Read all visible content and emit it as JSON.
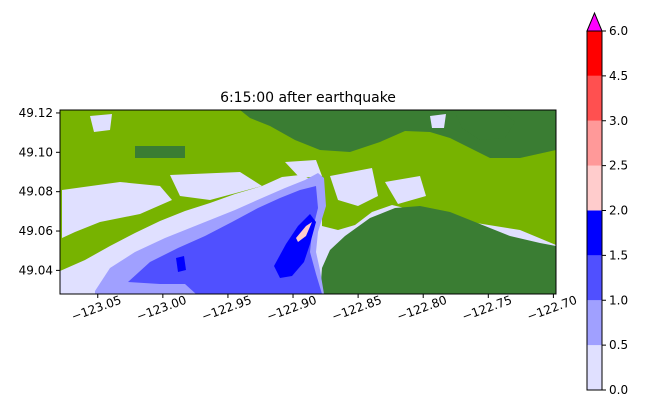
{
  "chart_data": {
    "type": "heatmap",
    "title": "6:15:00 after earthquake",
    "xlabel": "",
    "ylabel": "",
    "x_ticks": [
      -123.05,
      -123.0,
      -122.95,
      -122.9,
      -122.85,
      -122.8,
      -122.75,
      -122.7
    ],
    "x_tick_labels": [
      "−123.05",
      "−123.00",
      "−122.95",
      "−122.90",
      "−122.85",
      "−122.80",
      "−122.75",
      "−122.70"
    ],
    "y_ticks": [
      49.04,
      49.06,
      49.08,
      49.1,
      49.12
    ],
    "y_tick_labels": [
      "49.04",
      "49.06",
      "49.08",
      "49.10",
      "49.12"
    ],
    "xlim": [
      -123.079,
      -122.698
    ],
    "ylim": [
      49.028,
      49.1215
    ],
    "grid": false,
    "colorbar": {
      "levels": [
        0.0,
        0.5,
        1.0,
        1.5,
        2.0,
        2.5,
        3.0,
        4.5,
        6.0
      ],
      "tick_labels": [
        "0.0",
        "0.5",
        "1.0",
        "1.5",
        "2.0",
        "2.5",
        "3.0",
        "4.5",
        "6.0"
      ],
      "colors": [
        "#e0e0ff",
        "#a0a0ff",
        "#5050ff",
        "#0000ff",
        "#ffcccc",
        "#ff9999",
        "#ff5050",
        "#ff0000"
      ],
      "extend_max_color": "#ff00ff",
      "placement": "right"
    },
    "land_colors": {
      "low": "#77b300",
      "high": "#3a7d33"
    }
  }
}
